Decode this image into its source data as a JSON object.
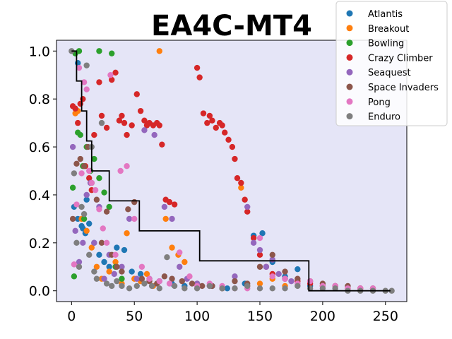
{
  "chart_data": {
    "type": "scatter",
    "title": "EA4C-MT4",
    "xlabel": "",
    "ylabel": "",
    "xlim": [
      -12,
      267
    ],
    "ylim": [
      -0.045,
      1.045
    ],
    "x_ticks": [
      0,
      50,
      100,
      150,
      200,
      250
    ],
    "y_ticks": [
      0.0,
      0.2,
      0.4,
      0.6,
      0.8,
      1.0
    ],
    "x_tick_labels": [
      "0",
      "50",
      "100",
      "150",
      "200",
      "250"
    ],
    "y_tick_labels": [
      "0.0",
      "0.2",
      "0.4",
      "0.6",
      "0.8",
      "1.0"
    ],
    "plot_background": "#e5e5f7",
    "legend_position": "top-right",
    "series": [
      {
        "name": "Atlantis",
        "color": "#1f77b4",
        "x": [
          2,
          5,
          8,
          11,
          14,
          18,
          22,
          26,
          30,
          36,
          42,
          48,
          55,
          62,
          70,
          80,
          90,
          100,
          112,
          124,
          138,
          145,
          152,
          160,
          170,
          180,
          190,
          5,
          9,
          12
        ],
        "y": [
          0.35,
          0.3,
          0.27,
          0.24,
          0.28,
          0.2,
          0.15,
          0.12,
          0.1,
          0.18,
          0.17,
          0.08,
          0.07,
          0.05,
          0.04,
          0.03,
          0.02,
          0.03,
          0.02,
          0.01,
          0.03,
          0.23,
          0.24,
          0.12,
          0.06,
          0.09,
          0.02,
          0.95,
          0.26,
          0.38
        ]
      },
      {
        "name": "Breakout",
        "color": "#ff7f0e",
        "x": [
          3,
          5,
          8,
          12,
          16,
          20,
          24,
          30,
          35,
          40,
          44,
          50,
          55,
          60,
          65,
          70,
          75,
          80,
          85,
          90,
          100,
          110,
          120,
          135,
          140,
          150,
          160,
          170
        ],
        "y": [
          0.74,
          0.75,
          0.3,
          0.25,
          0.18,
          0.1,
          0.05,
          0.08,
          0.12,
          0.03,
          0.24,
          0.05,
          0.04,
          0.07,
          0.02,
          1.0,
          0.3,
          0.18,
          0.15,
          0.12,
          0.03,
          0.02,
          0.01,
          0.43,
          0.02,
          0.03,
          0.05,
          0.02
        ]
      },
      {
        "name": "Bowling",
        "color": "#2ca02c",
        "x": [
          1,
          3,
          5,
          7,
          9,
          12,
          15,
          18,
          22,
          26,
          30,
          35,
          40,
          22,
          32,
          6,
          2,
          10
        ],
        "y": [
          0.43,
          0.99,
          0.66,
          0.65,
          0.52,
          0.6,
          0.5,
          0.55,
          0.47,
          0.41,
          0.35,
          0.1,
          0.05,
          1.0,
          0.99,
          1.0,
          0.06,
          0.3
        ]
      },
      {
        "name": "Crazy Climber",
        "color": "#d62728",
        "x": [
          1,
          3,
          5,
          7,
          9,
          11,
          14,
          16,
          18,
          22,
          24,
          28,
          32,
          35,
          38,
          40,
          42,
          44,
          48,
          52,
          55,
          58,
          60,
          62,
          65,
          68,
          70,
          72,
          75,
          78,
          82,
          100,
          102,
          105,
          108,
          110,
          112,
          115,
          118,
          120,
          122,
          125,
          128,
          130,
          132,
          135,
          138,
          140,
          145,
          150,
          155,
          160,
          170,
          180,
          190,
          200,
          210,
          220,
          230
        ],
        "y": [
          0.77,
          0.76,
          0.7,
          0.78,
          0.8,
          0.52,
          0.47,
          0.42,
          0.65,
          0.87,
          0.73,
          0.68,
          0.88,
          0.91,
          0.71,
          0.73,
          0.7,
          0.65,
          0.69,
          0.82,
          0.75,
          0.71,
          0.69,
          0.7,
          0.69,
          0.7,
          0.69,
          0.61,
          0.38,
          0.37,
          0.36,
          0.93,
          0.89,
          0.74,
          0.7,
          0.73,
          0.71,
          0.68,
          0.7,
          0.69,
          0.66,
          0.63,
          0.6,
          0.55,
          0.47,
          0.45,
          0.38,
          0.33,
          0.22,
          0.15,
          0.1,
          0.07,
          0.05,
          0.04,
          0.03,
          0.02,
          0.02,
          0.01,
          0.01
        ]
      },
      {
        "name": "Seaquest",
        "color": "#9467bd",
        "x": [
          1,
          3,
          6,
          9,
          12,
          15,
          18,
          22,
          26,
          30,
          34,
          40,
          46,
          52,
          58,
          66,
          74,
          80,
          86,
          92,
          100,
          110,
          130,
          140,
          145,
          150,
          155,
          160,
          165,
          170,
          175
        ],
        "y": [
          0.6,
          0.25,
          0.12,
          0.2,
          0.4,
          0.45,
          0.2,
          0.35,
          0.05,
          0.15,
          0.07,
          0.1,
          0.3,
          0.05,
          0.67,
          0.65,
          0.35,
          0.3,
          0.1,
          0.05,
          0.03,
          0.02,
          0.06,
          0.35,
          0.2,
          0.17,
          0.1,
          0.13,
          0.07,
          0.05,
          0.04
        ]
      },
      {
        "name": "Space Invaders",
        "color": "#8c564b",
        "x": [
          1,
          4,
          7,
          10,
          13,
          16,
          20,
          24,
          28,
          32,
          36,
          40,
          45,
          50,
          56,
          62,
          68,
          74,
          80,
          88,
          96,
          104,
          112,
          120,
          130,
          140,
          150,
          160,
          170,
          180,
          190,
          200,
          210,
          220,
          230,
          240
        ],
        "y": [
          0.3,
          0.53,
          0.55,
          0.52,
          0.6,
          0.45,
          0.38,
          0.2,
          0.33,
          0.15,
          0.1,
          0.08,
          0.34,
          0.37,
          0.05,
          0.04,
          0.03,
          0.06,
          0.05,
          0.04,
          0.03,
          0.02,
          0.02,
          0.01,
          0.04,
          0.03,
          0.1,
          0.15,
          0.08,
          0.05,
          0.04,
          0.03,
          0.02,
          0.02,
          0.01,
          0.01
        ]
      },
      {
        "name": "Pong",
        "color": "#e377c2",
        "x": [
          2,
          4,
          6,
          8,
          10,
          12,
          14,
          16,
          19,
          22,
          25,
          28,
          31,
          35,
          39,
          44,
          50,
          56,
          62,
          70,
          78,
          86,
          94,
          100,
          110,
          120,
          130,
          140,
          150,
          160,
          170,
          180,
          190,
          200,
          210,
          220,
          230,
          240
        ],
        "y": [
          0.11,
          0.36,
          0.93,
          0.49,
          0.87,
          0.84,
          0.5,
          0.45,
          0.42,
          0.34,
          0.26,
          0.2,
          0.9,
          0.15,
          0.5,
          0.52,
          0.3,
          0.1,
          0.05,
          0.04,
          0.03,
          0.16,
          0.06,
          0.02,
          0.03,
          0.02,
          0.01,
          0.01,
          0.22,
          0.06,
          0.05,
          0.03,
          0.04,
          0.02,
          0.02,
          0.01,
          0.01,
          0.01
        ]
      },
      {
        "name": "Enduro",
        "color": "#7f7f7f",
        "x": [
          0,
          2,
          4,
          6,
          8,
          10,
          12,
          14,
          16,
          18,
          20,
          24,
          28,
          32,
          36,
          40,
          46,
          52,
          58,
          64,
          70,
          76,
          82,
          90,
          100,
          110,
          120,
          130,
          140,
          150,
          160,
          170,
          180,
          190,
          200,
          210,
          220,
          230,
          240,
          250,
          255
        ],
        "y": [
          1.0,
          0.49,
          0.2,
          0.1,
          0.35,
          0.32,
          0.94,
          0.15,
          0.6,
          0.08,
          0.05,
          0.7,
          0.03,
          0.02,
          0.04,
          0.02,
          0.01,
          0.02,
          0.03,
          0.02,
          0.01,
          0.14,
          0.02,
          0.01,
          0.01,
          0.02,
          0.01,
          0.01,
          0.02,
          0.01,
          0.01,
          0.01,
          0.02,
          0.01,
          0.01,
          0.01,
          0.0,
          0.0,
          0.0,
          0.0,
          0.0
        ]
      }
    ],
    "step_line": {
      "color": "#000000",
      "x": [
        0,
        4,
        4,
        8,
        8,
        12,
        12,
        16,
        16,
        20,
        20,
        24,
        24,
        30,
        30,
        38,
        38,
        54,
        54,
        100,
        100,
        102,
        102,
        189,
        189,
        254
      ],
      "y": [
        1.0,
        1.0,
        0.875,
        0.875,
        0.75,
        0.75,
        0.625,
        0.625,
        0.5,
        0.5,
        0.5,
        0.5,
        0.5,
        0.5,
        0.375,
        0.375,
        0.375,
        0.375,
        0.25,
        0.25,
        0.25,
        0.25,
        0.125,
        0.125,
        0.0,
        0.0
      ]
    }
  }
}
